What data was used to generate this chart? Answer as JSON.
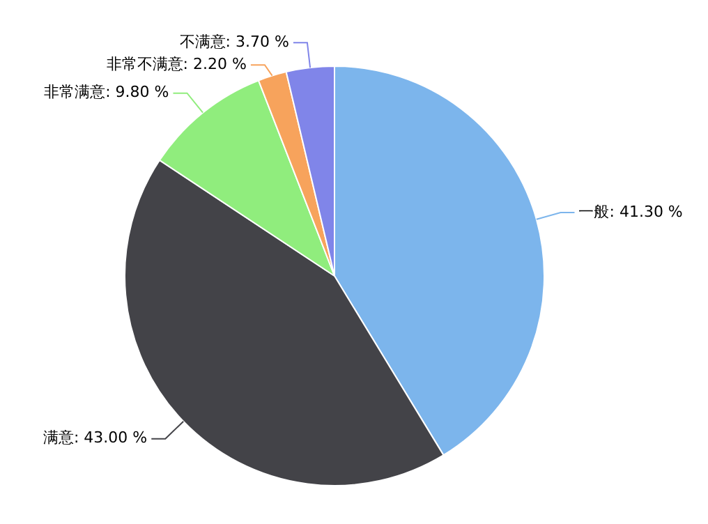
{
  "chart_data": {
    "type": "pie",
    "categories": [
      "一般",
      "满意",
      "非常满意",
      "非常不满意",
      "不满意"
    ],
    "values": [
      41.3,
      43.0,
      9.8,
      2.2,
      3.7
    ],
    "value_labels": [
      "41.30 %",
      "43.00 %",
      "9.80 %",
      "2.20 %",
      "3.70 %"
    ],
    "colors": [
      "#7cb5ec",
      "#434348",
      "#90ed7d",
      "#f7a35c",
      "#8085e9"
    ],
    "legend": false
  }
}
